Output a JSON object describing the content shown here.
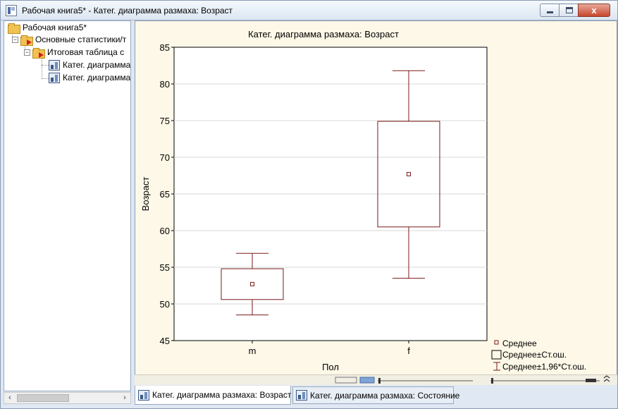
{
  "window": {
    "title": "Рабочая книга5* - Катег. диаграмма размаха:  Возраст",
    "close_glyph": "x"
  },
  "tree": {
    "items": [
      {
        "label": "Рабочая книга5*"
      },
      {
        "label": "Основные статистики/т"
      },
      {
        "label": "Итоговая таблица с"
      },
      {
        "label": "Катег. диаграмма"
      },
      {
        "label": "Катег. диаграмма"
      }
    ],
    "toggle_glyph": "−"
  },
  "scrollbar": {
    "left_arrow": "‹",
    "right_arrow": "›"
  },
  "chart_data": {
    "type": "box",
    "title": "Катег. диаграмма размаха:  Возраст",
    "xlabel": "Пол",
    "ylabel": "Возраст",
    "categories": [
      "m",
      "f"
    ],
    "ylim": [
      45,
      85
    ],
    "yticks": [
      "45",
      "50",
      "55",
      "60",
      "65",
      "70",
      "75",
      "80",
      "85"
    ],
    "ytick_values": [
      45,
      50,
      55,
      60,
      65,
      70,
      75,
      80,
      85
    ],
    "grid": true,
    "mean": [
      52.7,
      67.7
    ],
    "se_low": [
      50.6,
      60.5
    ],
    "se_high": [
      54.8,
      74.9
    ],
    "ci_low": [
      48.5,
      53.5
    ],
    "ci_high": [
      56.9,
      81.8
    ],
    "legend": {
      "placement": "bottom-right",
      "mean": "Среднее",
      "se": "Среднее±Ст.ош.",
      "ci": "Среднее±1,96*Ст.ош."
    },
    "color": "#7a1a1a"
  },
  "tabs": [
    {
      "label": "Катег. диаграмма размаха:  Возраст",
      "active": true
    },
    {
      "label": "Катег. диаграмма размаха: Состояние",
      "active": false
    }
  ]
}
